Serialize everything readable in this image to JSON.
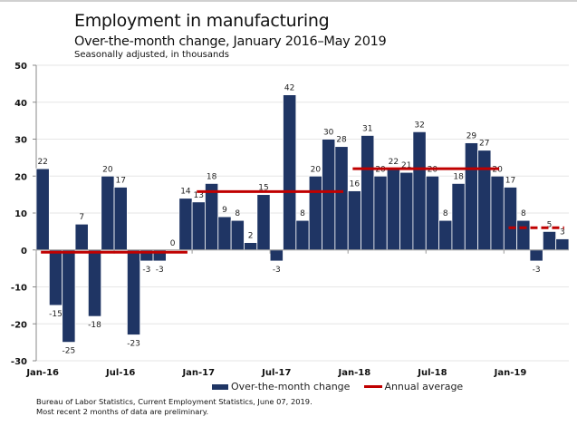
{
  "chart_data": {
    "type": "bar",
    "title": "Employment in manufacturing",
    "subtitle": "Over-the-month change, January 2016–May 2019",
    "note": "Seasonally adjusted, in thousands",
    "xlabel": "",
    "ylabel": "",
    "ylim": [
      -30,
      50
    ],
    "yticks": [
      50,
      40,
      30,
      20,
      10,
      0,
      -10,
      -20,
      -30
    ],
    "grid": true,
    "legend_position": "bottom",
    "x_tick_labels": [
      {
        "index": 0,
        "label": "Jan-16"
      },
      {
        "index": 6,
        "label": "Jul-16"
      },
      {
        "index": 12,
        "label": "Jan-17"
      },
      {
        "index": 18,
        "label": "Jul-17"
      },
      {
        "index": 24,
        "label": "Jan-18"
      },
      {
        "index": 30,
        "label": "Jul-18"
      },
      {
        "index": 36,
        "label": "Jan-19"
      }
    ],
    "series": [
      {
        "name": "Over-the-month change",
        "type": "bar",
        "color": "#1f3564",
        "values": [
          22,
          -15,
          -25,
          7,
          -18,
          20,
          17,
          -23,
          -3,
          -3,
          0,
          14,
          13,
          18,
          9,
          8,
          2,
          15,
          -3,
          42,
          8,
          20,
          30,
          28,
          16,
          31,
          20,
          22,
          21,
          32,
          20,
          8,
          18,
          29,
          27,
          20,
          17,
          8,
          -3,
          5,
          3
        ]
      },
      {
        "name": "Annual average",
        "type": "line",
        "color": "#c00000",
        "segments": [
          {
            "year": "2016",
            "start_index": 0,
            "end_index": 11,
            "value": -0.6,
            "dashed": false
          },
          {
            "year": "2017",
            "start_index": 12,
            "end_index": 23,
            "value": 15.8,
            "dashed": false
          },
          {
            "year": "2018",
            "start_index": 24,
            "end_index": 35,
            "value": 22,
            "dashed": false
          },
          {
            "year": "2019",
            "start_index": 36,
            "end_index": 40,
            "value": 6,
            "dashed": true
          }
        ]
      }
    ]
  },
  "legend": {
    "bar_label": "Over-the-month change",
    "line_label": "Annual average"
  },
  "source": {
    "line1": "Bureau of Labor Statistics, Current Employment Statistics, June 07, 2019.",
    "line2": "Most recent 2 months of data are preliminary."
  }
}
